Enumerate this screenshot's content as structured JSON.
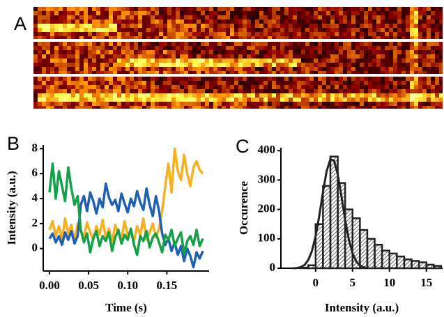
{
  "panel_labels": [
    "A",
    "B",
    "C"
  ],
  "chart_data": [
    {
      "type": "line",
      "xlabel": "Time (s)",
      "ylabel": "Intensity (a.u.)",
      "x": [
        0,
        0.004,
        0.008,
        0.012,
        0.016,
        0.02,
        0.024,
        0.028,
        0.032,
        0.036,
        0.04,
        0.044,
        0.048,
        0.052,
        0.056,
        0.06,
        0.064,
        0.068,
        0.072,
        0.076,
        0.08,
        0.084,
        0.088,
        0.092,
        0.096,
        0.1,
        0.104,
        0.108,
        0.112,
        0.116,
        0.12,
        0.124,
        0.128,
        0.132,
        0.136,
        0.14,
        0.144,
        0.148,
        0.152,
        0.156,
        0.16,
        0.164,
        0.168,
        0.172,
        0.176,
        0.18,
        0.184,
        0.188,
        0.192,
        0.196
      ],
      "series": [
        {
          "color": "#f5b11f",
          "values": [
            1.5,
            2.2,
            1.0,
            1.8,
            0.8,
            2.4,
            1.2,
            1.9,
            0.6,
            2.0,
            1.4,
            0.9,
            2.1,
            1.3,
            0.7,
            1.8,
            1.1,
            2.3,
            0.9,
            1.6,
            0.5,
            1.9,
            1.2,
            0.8,
            2.2,
            1.0,
            1.5,
            0.6,
            1.8,
            1.1,
            2.4,
            0.7,
            1.3,
            2.0,
            0.9,
            1.6,
            3.0,
            5.0,
            6.8,
            4.5,
            8.0,
            6.2,
            5.5,
            7.5,
            6.0,
            5.0,
            6.5,
            7.0,
            6.3,
            6.0
          ]
        },
        {
          "color": "#1f5fb4",
          "values": [
            0.8,
            1.2,
            0.5,
            1.0,
            0.3,
            1.3,
            0.7,
            1.4,
            0.4,
            1.0,
            3.5,
            4.2,
            3.0,
            4.5,
            3.8,
            2.8,
            4.0,
            3.3,
            5.2,
            4.1,
            3.5,
            3.9,
            3.0,
            4.4,
            3.6,
            2.9,
            4.0,
            3.4,
            4.6,
            3.7,
            3.1,
            4.8,
            3.5,
            2.6,
            4.2,
            3.0,
            1.2,
            0.3,
            0.8,
            -0.2,
            0.5,
            -0.5,
            0.2,
            -1.0,
            0.0,
            -0.6,
            -1.5,
            -0.3,
            -0.8,
            -0.2
          ]
        },
        {
          "color": "#15a04a",
          "values": [
            4.5,
            6.8,
            4.0,
            6.2,
            5.0,
            3.8,
            6.5,
            4.8,
            3.5,
            4.2,
            1.5,
            0.5,
            1.2,
            -0.3,
            0.8,
            1.4,
            0.2,
            1.0,
            0.6,
            1.3,
            -0.2,
            0.9,
            1.5,
            0.4,
            1.1,
            0.7,
            1.6,
            0.3,
            -0.5,
            1.0,
            0.6,
            1.4,
            0.1,
            0.9,
            1.2,
            0.5,
            -0.3,
            1.1,
            0.7,
            1.5,
            0.2,
            0.8,
            1.3,
            -0.4,
            0.6,
            1.0,
            0.3,
            1.5,
            0.2,
            0.8
          ]
        }
      ],
      "xlim": [
        -0.008,
        0.204
      ],
      "xticks": [
        {
          "value": 0,
          "label": "0.00"
        },
        0.05,
        {
          "value": 0.1,
          "label": "0.10"
        },
        0.15
      ],
      "ylim": [
        -1.8,
        8.3
      ],
      "yticks": [
        0,
        2,
        4,
        6,
        8
      ]
    },
    {
      "type": "histogram",
      "xlabel": "Intensity (a.u.)",
      "ylabel": "Occurence",
      "bins": [
        -3,
        -2,
        -1,
        0,
        1,
        2,
        3,
        4,
        5,
        6,
        7,
        8,
        9,
        10,
        11,
        12,
        13,
        14,
        15,
        16,
        17
      ],
      "values": [
        0,
        2,
        10,
        150,
        280,
        380,
        290,
        200,
        170,
        130,
        100,
        80,
        60,
        50,
        40,
        30,
        25,
        20,
        12,
        8
      ],
      "fit": {
        "x": [
          -3,
          -2.5,
          -2,
          -1.5,
          -1,
          -0.5,
          0,
          0.5,
          1,
          1.5,
          2,
          2.5,
          3,
          3.5,
          4,
          4.5,
          5,
          5.5,
          6,
          6.5,
          7
        ],
        "values": [
          0,
          1,
          4,
          11,
          28,
          58,
          109,
          179,
          260,
          331,
          371,
          366,
          319,
          244,
          164,
          97,
          51,
          23,
          9,
          3,
          1
        ]
      },
      "xlim": [
        -4.7,
        17.2
      ],
      "xticks": [
        0,
        5,
        10,
        15
      ],
      "ylim": [
        0,
        410
      ],
      "yticks": [
        0,
        100,
        200,
        300,
        400
      ]
    }
  ]
}
